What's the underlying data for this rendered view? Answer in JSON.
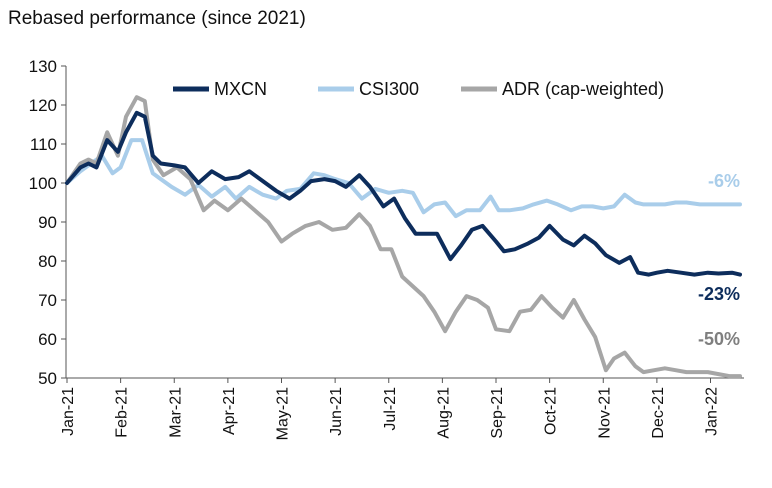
{
  "chart_data": {
    "type": "line",
    "title": "Rebased performance (since 2021)",
    "xlabel": "",
    "ylabel": "",
    "ylim": [
      50,
      130
    ],
    "yticks": [
      50,
      60,
      70,
      80,
      90,
      100,
      110,
      120,
      130
    ],
    "x_tick_labels": [
      "Jan-21",
      "Feb-21",
      "Mar-21",
      "Apr-21",
      "May-21",
      "Jun-21",
      "Jul-21",
      "Aug-21",
      "Sep-21",
      "Oct-21",
      "Nov-21",
      "Dec-21",
      "Jan-22"
    ],
    "x_start": 0,
    "x_end": 12.55,
    "series": [
      {
        "name": "MXCN",
        "color": "#0d2d5c",
        "end_label": "-23%",
        "x": [
          0,
          0.25,
          0.4,
          0.55,
          0.75,
          0.95,
          1.1,
          1.3,
          1.45,
          1.6,
          1.75,
          2.0,
          2.2,
          2.45,
          2.7,
          2.95,
          3.2,
          3.4,
          3.6,
          3.9,
          4.15,
          4.35,
          4.55,
          4.8,
          5.0,
          5.2,
          5.45,
          5.65,
          5.9,
          6.1,
          6.3,
          6.5,
          6.7,
          6.9,
          7.15,
          7.35,
          7.55,
          7.75,
          8.0,
          8.15,
          8.35,
          8.6,
          8.8,
          9.0,
          9.25,
          9.45,
          9.65,
          9.85,
          10.05,
          10.3,
          10.5,
          10.65,
          10.85,
          11.0,
          11.2,
          11.45,
          11.7,
          11.95,
          12.15,
          12.4,
          12.55
        ],
        "values": [
          100,
          104,
          105,
          104,
          111,
          108,
          113,
          118,
          117,
          107,
          105,
          104.5,
          104,
          100,
          103,
          101,
          101.5,
          103,
          101,
          98,
          96,
          98,
          100.5,
          101,
          100.5,
          99,
          102,
          99,
          94,
          96,
          91,
          87,
          87,
          87,
          80.5,
          84,
          88,
          89,
          85,
          82.5,
          83,
          84.5,
          86,
          89,
          85.5,
          84,
          86.5,
          84.5,
          81.5,
          79.5,
          81,
          77,
          76.5,
          77,
          77.5,
          77,
          76.5,
          77,
          76.8,
          77,
          76.5
        ]
      },
      {
        "name": "CSI300",
        "color": "#a9cdea",
        "end_label": "-6%",
        "x": [
          0,
          0.25,
          0.45,
          0.65,
          0.85,
          1.0,
          1.2,
          1.4,
          1.6,
          1.75,
          1.95,
          2.2,
          2.45,
          2.7,
          2.95,
          3.15,
          3.4,
          3.65,
          3.9,
          4.1,
          4.35,
          4.6,
          4.8,
          5.0,
          5.25,
          5.5,
          5.75,
          6.0,
          6.25,
          6.45,
          6.65,
          6.85,
          7.05,
          7.25,
          7.45,
          7.7,
          7.9,
          8.05,
          8.25,
          8.5,
          8.7,
          8.95,
          9.15,
          9.4,
          9.6,
          9.8,
          10.0,
          10.2,
          10.4,
          10.6,
          10.75,
          10.95,
          11.15,
          11.35,
          11.55,
          11.8,
          12.05,
          12.3,
          12.55
        ],
        "values": [
          100,
          103,
          105,
          107,
          102.5,
          104,
          111,
          111,
          102.5,
          101,
          99,
          97,
          99.5,
          96.5,
          99,
          96,
          99,
          97,
          96,
          98,
          98.5,
          102.5,
          102,
          101,
          100,
          96,
          98.5,
          97.5,
          98,
          97.5,
          92.5,
          94.5,
          95,
          91.5,
          93,
          93,
          96.5,
          93,
          93,
          93.5,
          94.5,
          95.5,
          94.5,
          93,
          94,
          94,
          93.5,
          94,
          97,
          95,
          94.5,
          94.5,
          94.5,
          95,
          95,
          94.5,
          94.5,
          94.5,
          94.5
        ]
      },
      {
        "name": "ADR (cap-weighted)",
        "color": "#a6a6a6",
        "end_label": "-50%",
        "x": [
          0,
          0.25,
          0.4,
          0.55,
          0.75,
          0.95,
          1.1,
          1.3,
          1.45,
          1.6,
          1.8,
          2.05,
          2.3,
          2.55,
          2.75,
          3.0,
          3.25,
          3.5,
          3.75,
          4.0,
          4.2,
          4.45,
          4.7,
          4.95,
          5.2,
          5.45,
          5.65,
          5.85,
          6.05,
          6.25,
          6.45,
          6.65,
          6.85,
          7.05,
          7.25,
          7.45,
          7.65,
          7.85,
          8.0,
          8.25,
          8.45,
          8.65,
          8.85,
          9.05,
          9.25,
          9.45,
          9.65,
          9.85,
          10.05,
          10.2,
          10.4,
          10.6,
          10.75,
          10.95,
          11.15,
          11.35,
          11.55,
          11.75,
          11.95,
          12.15,
          12.35,
          12.55
        ],
        "values": [
          100,
          105,
          106,
          105,
          113,
          107,
          117,
          122,
          121,
          106,
          102,
          104,
          101,
          93,
          95.5,
          93,
          96,
          93,
          90,
          85,
          87,
          89,
          90,
          88,
          88.5,
          92,
          89,
          83,
          83,
          76,
          73.5,
          71,
          67,
          62,
          67,
          71,
          70,
          68,
          62.5,
          62,
          67,
          67.5,
          71,
          68,
          65.5,
          70,
          65,
          60.5,
          52,
          55,
          56.5,
          53,
          51.5,
          52,
          52.5,
          52,
          51.5,
          51.5,
          51.5,
          51,
          50.5,
          50.5
        ]
      }
    ],
    "legend": [
      "MXCN",
      "CSI300",
      "ADR (cap-weighted)"
    ],
    "legend_position": "top-right",
    "grid": false
  }
}
